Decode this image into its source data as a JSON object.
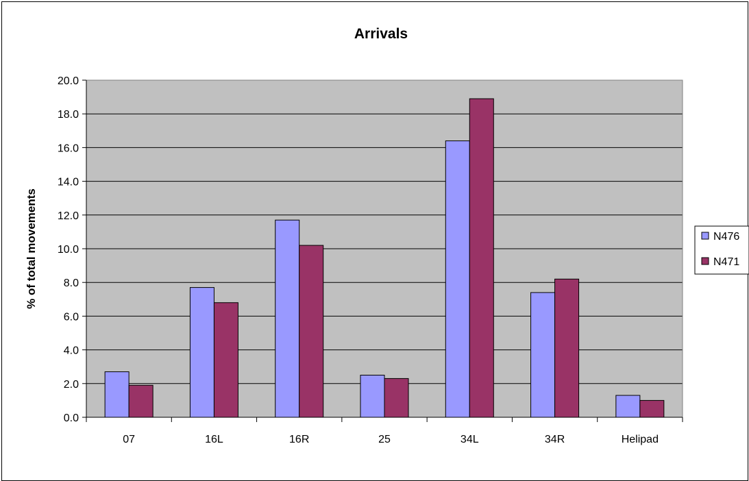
{
  "chart_data": {
    "type": "bar",
    "title": "Arrivals",
    "xlabel": "",
    "ylabel": "% of total movements",
    "categories": [
      "07",
      "16L",
      "16R",
      "25",
      "34L",
      "34R",
      "Helipad"
    ],
    "series": [
      {
        "name": "N476",
        "color": "#9999FF",
        "values": [
          2.7,
          7.7,
          11.7,
          2.5,
          16.4,
          7.4,
          1.3
        ]
      },
      {
        "name": "N471",
        "color": "#993366",
        "values": [
          1.9,
          6.8,
          10.2,
          2.3,
          18.9,
          8.2,
          1.0
        ]
      }
    ],
    "ylim": [
      0,
      20
    ],
    "yticks": [
      "0.0",
      "2.0",
      "4.0",
      "6.0",
      "8.0",
      "10.0",
      "12.0",
      "14.0",
      "16.0",
      "18.0",
      "20.0"
    ],
    "grid": true,
    "plot_background": "#C0C0C0",
    "legend_position": "right"
  }
}
